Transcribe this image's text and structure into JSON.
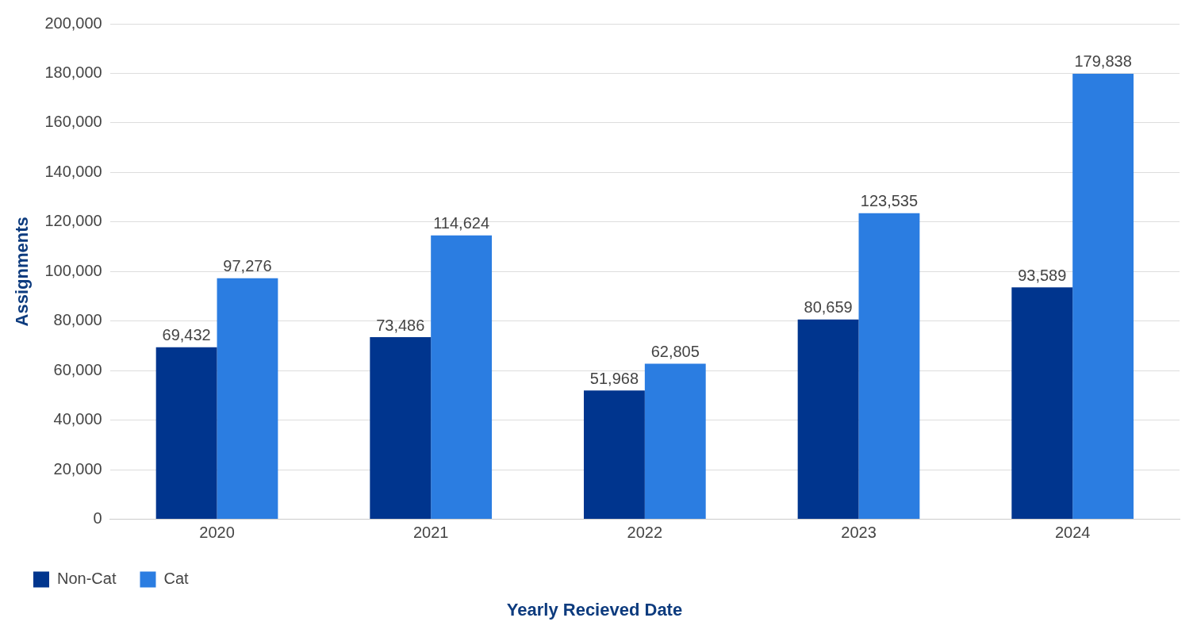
{
  "chart_data": {
    "type": "bar",
    "xlabel": "Yearly Recieved Date",
    "ylabel": "Assignments",
    "categories": [
      "2020",
      "2021",
      "2022",
      "2023",
      "2024"
    ],
    "series": [
      {
        "name": "Non-Cat",
        "color": "#00358e",
        "values": [
          69432,
          73486,
          51968,
          80659,
          93589
        ],
        "value_labels": [
          "69,432",
          "73,486",
          "51,968",
          "80,659",
          "93,589"
        ]
      },
      {
        "name": "Cat",
        "color": "#2b7de1",
        "values": [
          97276,
          114624,
          62805,
          123535,
          179838
        ],
        "value_labels": [
          "97,276",
          "114,624",
          "62,805",
          "123,535",
          "179,838"
        ]
      }
    ],
    "ylim": [
      0,
      200000
    ],
    "yticks": [
      0,
      {
        "value": 20000,
        "label": "20,000"
      },
      {
        "value": 40000,
        "label": "40,000"
      },
      {
        "value": 60000,
        "label": "60,000"
      },
      {
        "value": 80000,
        "label": "80,000"
      },
      {
        "value": 100000,
        "label": "100,000"
      },
      {
        "value": 120000,
        "label": "120,000"
      },
      {
        "value": 140000,
        "label": "140,000"
      },
      {
        "value": 160000,
        "label": "160,000"
      },
      {
        "value": 180000,
        "label": "180,000"
      },
      {
        "value": 200000,
        "label": "200,000"
      }
    ],
    "grid": "y",
    "legend": "bottom left"
  }
}
